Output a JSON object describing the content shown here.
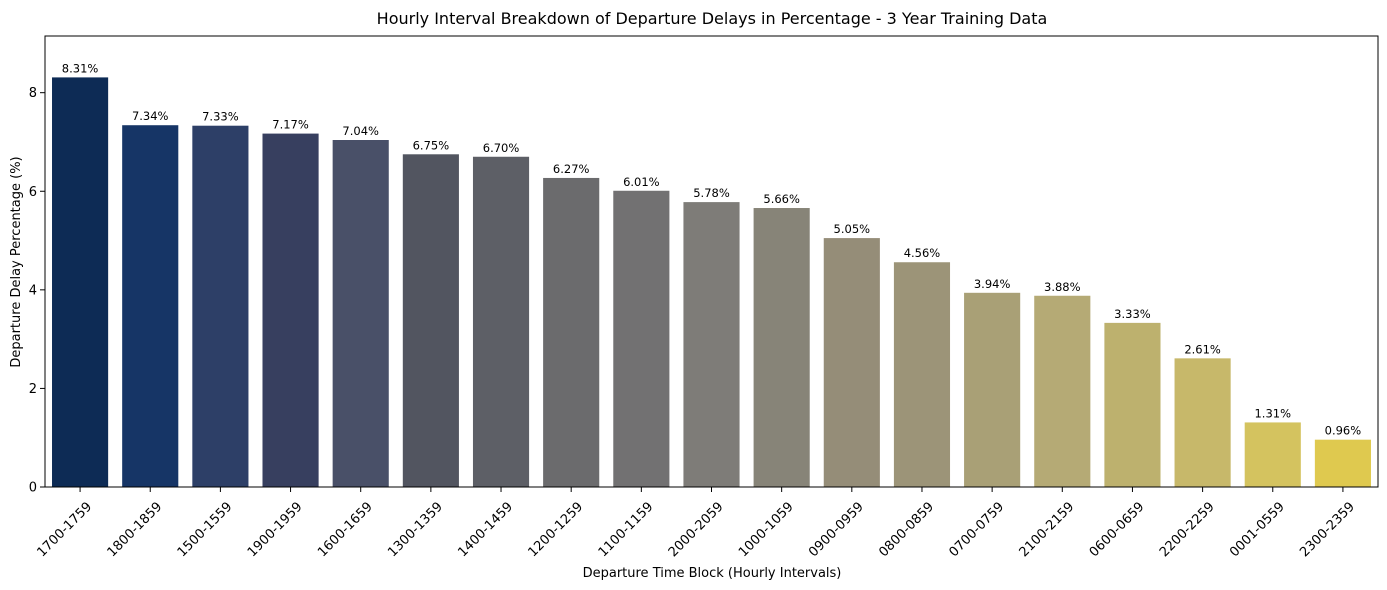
{
  "chart_data": {
    "type": "bar",
    "title": "Hourly Interval Breakdown of Departure Delays in Percentage - 3 Year Training Data",
    "xlabel": "Departure Time Block (Hourly Intervals)",
    "ylabel": "Departure Delay Percentage (%)",
    "ylim": [
      0,
      9.15
    ],
    "yticks": [
      0,
      2,
      4,
      6,
      8
    ],
    "grid": false,
    "legend": "none",
    "categories": [
      "1700-1759",
      "1800-1859",
      "1500-1559",
      "1900-1959",
      "1600-1659",
      "1300-1359",
      "1400-1459",
      "1200-1259",
      "1100-1159",
      "2000-2059",
      "1000-1059",
      "0900-0959",
      "0800-0859",
      "0700-0759",
      "2100-2159",
      "0600-0659",
      "2200-2259",
      "0001-0559",
      "2300-2359"
    ],
    "values": [
      8.31,
      7.34,
      7.33,
      7.17,
      7.04,
      6.75,
      6.7,
      6.27,
      6.01,
      5.78,
      5.66,
      5.05,
      4.56,
      3.94,
      3.88,
      3.33,
      2.61,
      1.31,
      0.96
    ],
    "data_labels": [
      "8.31%",
      "7.34%",
      "7.33%",
      "7.17%",
      "7.04%",
      "6.75%",
      "6.70%",
      "6.27%",
      "6.01%",
      "5.78%",
      "5.66%",
      "5.05%",
      "4.56%",
      "3.94%",
      "3.88%",
      "3.33%",
      "2.61%",
      "1.31%",
      "0.96%"
    ],
    "colors": [
      "#0d2b55",
      "#163566",
      "#2d3f67",
      "#373f5f",
      "#495068",
      "#525560",
      "#5d5f66",
      "#6b6b6d",
      "#727172",
      "#7e7c78",
      "#878478",
      "#958d78",
      "#9c9478",
      "#a9a076",
      "#b5aa75",
      "#bdb16e",
      "#c7b86a",
      "#d4c35f",
      "#dfc94f"
    ]
  }
}
